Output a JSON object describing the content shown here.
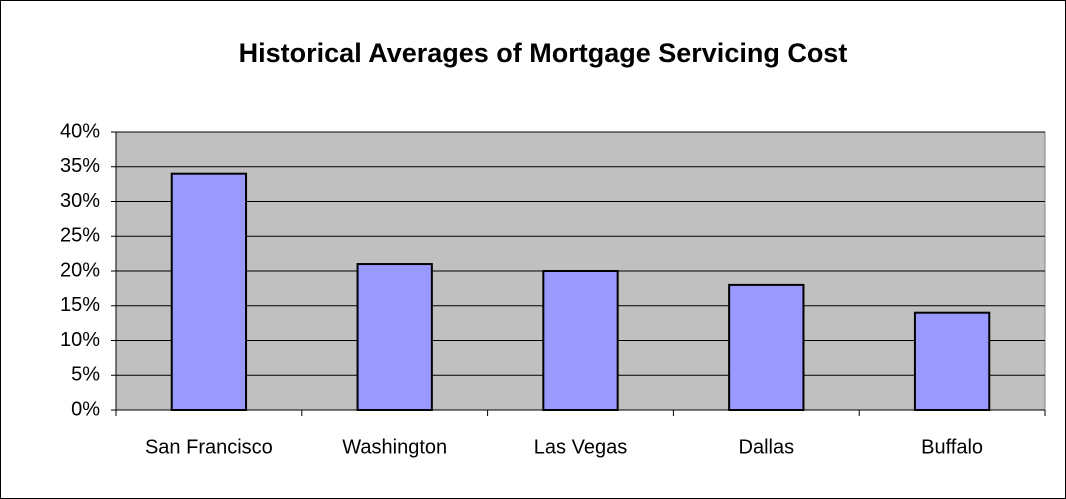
{
  "chart_data": {
    "type": "bar",
    "title": "Historical Averages of Mortgage Servicing Cost",
    "categories": [
      "San Francisco",
      "Washington",
      "Las Vegas",
      "Dallas",
      "Buffalo"
    ],
    "values": [
      34,
      21,
      20,
      18,
      14
    ],
    "color": "#9999ff",
    "ylim": [
      0,
      40
    ],
    "yticks": [
      {
        "value": 0,
        "label": "0%"
      },
      {
        "value": 5,
        "label": "5%"
      },
      {
        "value": 10,
        "label": "10%"
      },
      {
        "value": 15,
        "label": "15%"
      },
      {
        "value": 20,
        "label": "20%"
      },
      {
        "value": 25,
        "label": "25%"
      },
      {
        "value": 30,
        "label": "30%"
      },
      {
        "value": 35,
        "label": "35%"
      },
      {
        "value": 40,
        "label": "40%"
      }
    ],
    "grid": true
  }
}
